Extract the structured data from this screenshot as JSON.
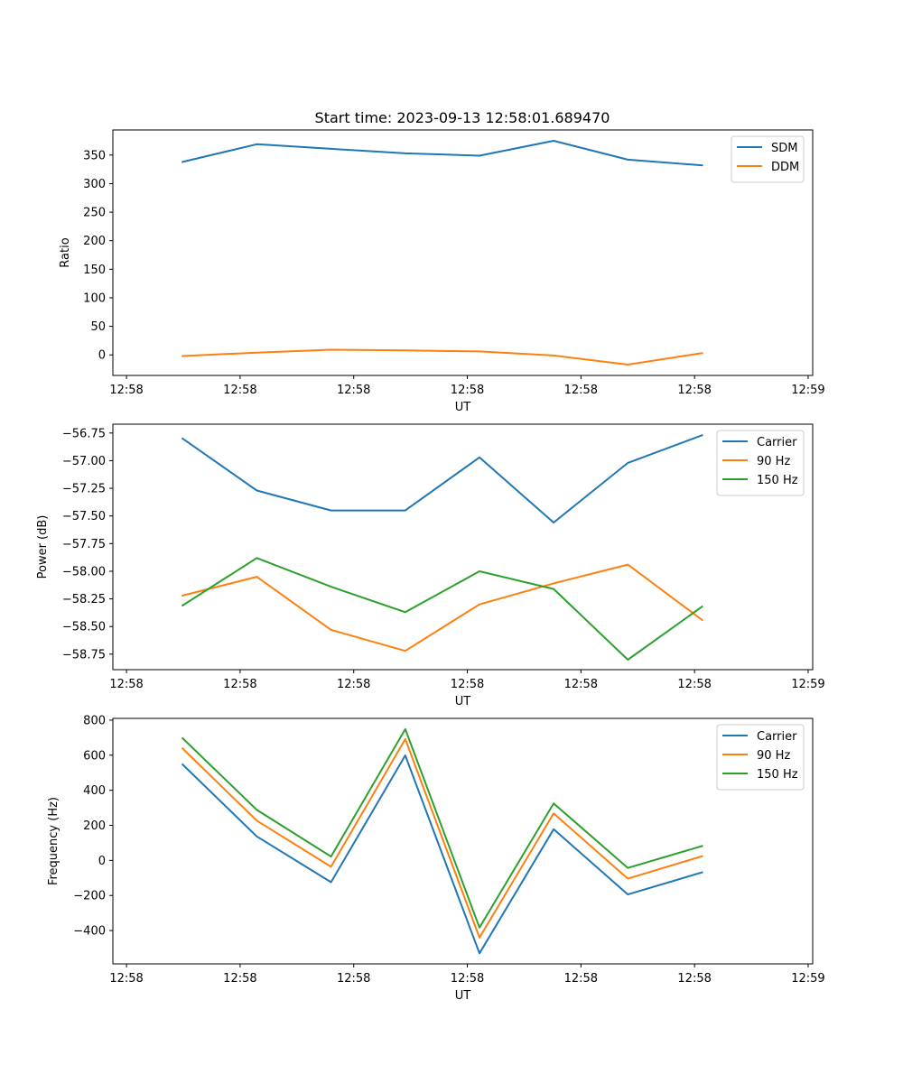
{
  "figure_title": "Start time: 2023-09-13 12:58:01.689470",
  "chart_data": [
    {
      "type": "line",
      "title": "Start time: 2023-09-13 12:58:01.689470",
      "xlabel": "UT",
      "ylabel": "Ratio",
      "xlim": [
        -0.09,
        4.53
      ],
      "ylim": [
        -36,
        394
      ],
      "xticks": [
        {
          "v": 0,
          "label": "12:58"
        },
        {
          "v": 0.75,
          "label": "12:58"
        },
        {
          "v": 1.5,
          "label": "12:58"
        },
        {
          "v": 2.25,
          "label": "12:58"
        },
        {
          "v": 3.0,
          "label": "12:58"
        },
        {
          "v": 3.75,
          "label": "12:58"
        },
        {
          "v": 4.5,
          "label": "12:59"
        }
      ],
      "yticks": [
        {
          "v": 0,
          "label": "0"
        },
        {
          "v": 50,
          "label": "50"
        },
        {
          "v": 100,
          "label": "100"
        },
        {
          "v": 150,
          "label": "150"
        },
        {
          "v": 200,
          "label": "200"
        },
        {
          "v": 250,
          "label": "250"
        },
        {
          "v": 300,
          "label": "300"
        },
        {
          "v": 350,
          "label": "350"
        }
      ],
      "x": [
        0.37,
        0.86,
        1.35,
        1.84,
        2.33,
        2.82,
        3.31,
        3.8
      ],
      "legend": "upper right",
      "series": [
        {
          "name": "SDM",
          "color": "#1f77b4",
          "values": [
            338,
            369,
            361,
            353,
            349,
            375,
            342,
            332
          ]
        },
        {
          "name": "DDM",
          "color": "#ff7f0e",
          "values": [
            -2,
            4,
            9,
            8,
            6,
            -1,
            -17,
            3
          ]
        }
      ]
    },
    {
      "type": "line",
      "title": "",
      "xlabel": "UT",
      "ylabel": "Power (dB)",
      "xlim": [
        -0.09,
        4.53
      ],
      "ylim": [
        -58.89,
        -56.67
      ],
      "xticks": [
        {
          "v": 0,
          "label": "12:58"
        },
        {
          "v": 0.75,
          "label": "12:58"
        },
        {
          "v": 1.5,
          "label": "12:58"
        },
        {
          "v": 2.25,
          "label": "12:58"
        },
        {
          "v": 3.0,
          "label": "12:58"
        },
        {
          "v": 3.75,
          "label": "12:58"
        },
        {
          "v": 4.5,
          "label": "12:59"
        }
      ],
      "yticks": [
        {
          "v": -58.75,
          "label": "−58.75"
        },
        {
          "v": -58.5,
          "label": "−58.50"
        },
        {
          "v": -58.25,
          "label": "−58.25"
        },
        {
          "v": -58.0,
          "label": "−58.00"
        },
        {
          "v": -57.75,
          "label": "−57.75"
        },
        {
          "v": -57.5,
          "label": "−57.50"
        },
        {
          "v": -57.25,
          "label": "−57.25"
        },
        {
          "v": -57.0,
          "label": "−57.00"
        },
        {
          "v": -56.75,
          "label": "−56.75"
        }
      ],
      "x": [
        0.37,
        0.86,
        1.35,
        1.84,
        2.33,
        2.82,
        3.31,
        3.8
      ],
      "legend": "upper right",
      "series": [
        {
          "name": "Carrier",
          "color": "#1f77b4",
          "values": [
            -56.8,
            -57.27,
            -57.45,
            -57.45,
            -56.97,
            -57.56,
            -57.02,
            -56.77
          ]
        },
        {
          "name": "90 Hz",
          "color": "#ff7f0e",
          "values": [
            -58.22,
            -58.05,
            -58.53,
            -58.72,
            -58.3,
            -58.11,
            -57.94,
            -58.44
          ]
        },
        {
          "name": "150 Hz",
          "color": "#2ca02c",
          "values": [
            -58.31,
            -57.88,
            -58.14,
            -58.37,
            -58.0,
            -58.16,
            -58.8,
            -58.32
          ]
        }
      ]
    },
    {
      "type": "line",
      "title": "",
      "xlabel": "UT",
      "ylabel": "Frequency (Hz)",
      "xlim": [
        -0.09,
        4.53
      ],
      "ylim": [
        -590,
        810
      ],
      "xticks": [
        {
          "v": 0,
          "label": "12:58"
        },
        {
          "v": 0.75,
          "label": "12:58"
        },
        {
          "v": 1.5,
          "label": "12:58"
        },
        {
          "v": 2.25,
          "label": "12:58"
        },
        {
          "v": 3.0,
          "label": "12:58"
        },
        {
          "v": 3.75,
          "label": "12:58"
        },
        {
          "v": 4.5,
          "label": "12:59"
        }
      ],
      "yticks": [
        {
          "v": -400,
          "label": "−400"
        },
        {
          "v": -200,
          "label": "−200"
        },
        {
          "v": 0,
          "label": "0"
        },
        {
          "v": 200,
          "label": "200"
        },
        {
          "v": 400,
          "label": "400"
        },
        {
          "v": 600,
          "label": "600"
        },
        {
          "v": 800,
          "label": "800"
        }
      ],
      "x": [
        0.37,
        0.86,
        1.35,
        1.84,
        2.33,
        2.82,
        3.31,
        3.8
      ],
      "legend": "upper right",
      "series": [
        {
          "name": "Carrier",
          "color": "#1f77b4",
          "values": [
            547,
            137,
            -124,
            599,
            -530,
            178,
            -194,
            -68
          ]
        },
        {
          "name": "90 Hz",
          "color": "#ff7f0e",
          "values": [
            638,
            227,
            -36,
            692,
            -440,
            268,
            -104,
            24
          ]
        },
        {
          "name": "150 Hz",
          "color": "#2ca02c",
          "values": [
            697,
            288,
            22,
            749,
            -383,
            325,
            -43,
            82
          ]
        }
      ]
    }
  ]
}
